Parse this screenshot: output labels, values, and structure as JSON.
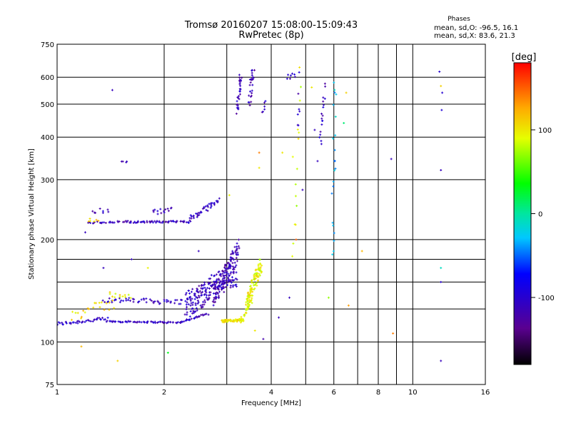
{
  "chart_data": {
    "type": "scatter",
    "title": "Tromsø 20160207 15:08:00-15:09:43",
    "subtitle": "RwPretec (8p)",
    "xlabel": "Frequency [MHz]",
    "ylabel": "Stationary phase Virtual Height [km]",
    "x_scale": "log",
    "y_scale": "log",
    "xlim": [
      1,
      16
    ],
    "ylim": [
      75,
      750
    ],
    "x_ticks": [
      1,
      2,
      4,
      6,
      8,
      10,
      16
    ],
    "x_ticklabels": [
      "1",
      "2",
      "4",
      "6",
      "8",
      "10",
      "16"
    ],
    "y_ticks": [
      75,
      100,
      200,
      300,
      400,
      500,
      600,
      750
    ],
    "y_ticklabels": [
      "75",
      "100",
      "200",
      "300",
      "400",
      "500",
      "600",
      "750"
    ],
    "x_grid": [
      1,
      2,
      3,
      4,
      5,
      6,
      7,
      8,
      9,
      10,
      16
    ],
    "y_grid": [
      75,
      100,
      125,
      150,
      175,
      200,
      300,
      400,
      500,
      600,
      750
    ],
    "grid": true,
    "phase_stats": {
      "header": "Phases",
      "o_mode": "mean, sd,O: -96.5, 16.1",
      "x_mode": "mean, sd,X:  83.6, 21.3"
    },
    "colorbar": {
      "label": "[deg]",
      "min": -180,
      "max": 180,
      "ticks": [
        -100,
        0,
        100
      ],
      "ticklabels": [
        "-100",
        "0",
        "100"
      ]
    },
    "series": [
      {
        "traces": [
          {
            "from": [
              1.0,
              113
            ],
            "to": [
              1.38,
              117
            ],
            "n": 40,
            "spread": 0.012,
            "phase": -105
          },
          {
            "from": [
              1.38,
              115
            ],
            "to": [
              2.2,
              114
            ],
            "n": 60,
            "spread": 0.005,
            "phase": -110
          },
          {
            "from": [
              2.2,
              114
            ],
            "to": [
              2.65,
              121
            ],
            "n": 30,
            "spread": 0.006,
            "phase": -108
          },
          {
            "from": [
              1.35,
              133
            ],
            "to": [
              2.3,
              131
            ],
            "n": 55,
            "spread": 0.018,
            "phase": -105
          },
          {
            "from": [
              2.3,
              128
            ],
            "to": [
              3.2,
              160
            ],
            "n": 220,
            "spread": 0.09,
            "phase": -110
          },
          {
            "from": [
              2.75,
              135
            ],
            "to": [
              3.25,
              190
            ],
            "n": 90,
            "spread": 0.06,
            "phase": -115
          },
          {
            "from": [
              1.22,
              224
            ],
            "to": [
              1.6,
              226
            ],
            "n": 28,
            "spread": 0.006,
            "phase": -112
          },
          {
            "from": [
              1.6,
              225
            ],
            "to": [
              2.35,
              226
            ],
            "n": 55,
            "spread": 0.006,
            "phase": -110
          },
          {
            "from": [
              2.35,
              228
            ],
            "to": [
              2.85,
              262
            ],
            "n": 40,
            "spread": 0.02,
            "phase": -108
          },
          {
            "from": [
              1.85,
              240
            ],
            "to": [
              2.1,
              248
            ],
            "n": 14,
            "spread": 0.02,
            "phase": -112
          },
          {
            "from": [
              1.25,
              240
            ],
            "to": [
              1.4,
              244
            ],
            "n": 8,
            "spread": 0.02,
            "phase": -110
          },
          {
            "from": [
              3.22,
              470
            ],
            "to": [
              3.28,
              620
            ],
            "n": 30,
            "spread": 0.035,
            "phase": -112
          },
          {
            "from": [
              3.48,
              505
            ],
            "to": [
              3.56,
              640
            ],
            "n": 26,
            "spread": 0.035,
            "phase": -115
          },
          {
            "from": [
              3.78,
              470
            ],
            "to": [
              3.85,
              505
            ],
            "n": 6,
            "spread": 0.02,
            "phase": -110
          },
          {
            "from": [
              5.5,
              380
            ],
            "to": [
              5.65,
              560
            ],
            "n": 18,
            "spread": 0.05,
            "phase": -110
          },
          {
            "from": [
              4.45,
              600
            ],
            "to": [
              4.75,
              610
            ],
            "n": 8,
            "spread": 0.02,
            "phase": -112
          },
          {
            "from": [
              4.75,
              430
            ],
            "to": [
              4.78,
              520
            ],
            "n": 6,
            "spread": 0.04,
            "phase": -110
          },
          {
            "from": [
              12.0,
              620
            ],
            "to": [
              12.0,
              480
            ],
            "n": 3,
            "spread": 0.01,
            "phase": -110
          },
          {
            "from": [
              1.52,
              338
            ],
            "to": [
              1.58,
              338
            ],
            "n": 4,
            "spread": 0.004,
            "phase": -110
          },
          {
            "from": [
              5.95,
              180
            ],
            "to": [
              6.05,
              620
            ],
            "n": 22,
            "spread": 0.08,
            "phase": -30
          }
        ]
      },
      {
        "traces": [
          {
            "from": [
              2.9,
              115
            ],
            "to": [
              3.35,
              116
            ],
            "n": 70,
            "spread": 0.008,
            "phase": 100
          },
          {
            "from": [
              3.3,
              116
            ],
            "to": [
              3.5,
              130
            ],
            "n": 20,
            "spread": 0.02,
            "phase": 95
          },
          {
            "from": [
              3.4,
              128
            ],
            "to": [
              3.75,
              170
            ],
            "n": 100,
            "spread": 0.05,
            "phase": 95
          },
          {
            "from": [
              1.1,
              120
            ],
            "to": [
              1.45,
              130
            ],
            "n": 22,
            "spread": 0.04,
            "phase": 105
          },
          {
            "from": [
              1.4,
              138
            ],
            "to": [
              1.6,
              137
            ],
            "n": 12,
            "spread": 0.02,
            "phase": 100
          },
          {
            "from": [
              1.22,
              226
            ],
            "to": [
              1.3,
              228
            ],
            "n": 6,
            "spread": 0.02,
            "phase": 102
          },
          {
            "from": [
              4.6,
              170
            ],
            "to": [
              4.85,
              600
            ],
            "n": 14,
            "spread": 0.08,
            "phase": 90
          }
        ]
      }
    ],
    "scatter_points": [
      {
        "x": 1.43,
        "y": 550,
        "phase": -110
      },
      {
        "x": 3.05,
        "y": 270,
        "phase": 95
      },
      {
        "x": 3.7,
        "y": 360,
        "phase": 140
      },
      {
        "x": 3.7,
        "y": 325,
        "phase": 100
      },
      {
        "x": 4.3,
        "y": 360,
        "phase": 100
      },
      {
        "x": 4.6,
        "y": 350,
        "phase": 90
      },
      {
        "x": 4.9,
        "y": 280,
        "phase": -110
      },
      {
        "x": 5.2,
        "y": 560,
        "phase": 100
      },
      {
        "x": 5.3,
        "y": 420,
        "phase": -110
      },
      {
        "x": 5.4,
        "y": 340,
        "phase": -110
      },
      {
        "x": 6.5,
        "y": 540,
        "phase": 110
      },
      {
        "x": 6.4,
        "y": 440,
        "phase": 10
      },
      {
        "x": 8.7,
        "y": 345,
        "phase": -110
      },
      {
        "x": 12.0,
        "y": 320,
        "phase": -110
      },
      {
        "x": 12.0,
        "y": 165,
        "phase": -10
      },
      {
        "x": 12.0,
        "y": 150,
        "phase": -100
      },
      {
        "x": 12.0,
        "y": 88,
        "phase": -110
      },
      {
        "x": 12.0,
        "y": 565,
        "phase": 110
      },
      {
        "x": 1.62,
        "y": 175,
        "phase": -110
      },
      {
        "x": 1.35,
        "y": 165,
        "phase": -110
      },
      {
        "x": 1.2,
        "y": 210,
        "phase": -110
      },
      {
        "x": 1.17,
        "y": 97,
        "phase": 120
      },
      {
        "x": 1.48,
        "y": 88,
        "phase": 110
      },
      {
        "x": 2.05,
        "y": 93,
        "phase": 30
      },
      {
        "x": 3.8,
        "y": 102,
        "phase": -120
      },
      {
        "x": 4.2,
        "y": 118,
        "phase": -110
      },
      {
        "x": 4.5,
        "y": 135,
        "phase": -110
      },
      {
        "x": 6.6,
        "y": 128,
        "phase": 130
      },
      {
        "x": 8.8,
        "y": 106,
        "phase": 140
      },
      {
        "x": 3.6,
        "y": 108,
        "phase": 100
      },
      {
        "x": 4.7,
        "y": 200,
        "phase": 150
      },
      {
        "x": 5.8,
        "y": 135,
        "phase": 70
      },
      {
        "x": 7.2,
        "y": 185,
        "phase": 120
      },
      {
        "x": 2.5,
        "y": 185,
        "phase": -110
      },
      {
        "x": 1.8,
        "y": 165,
        "phase": 95
      }
    ]
  }
}
